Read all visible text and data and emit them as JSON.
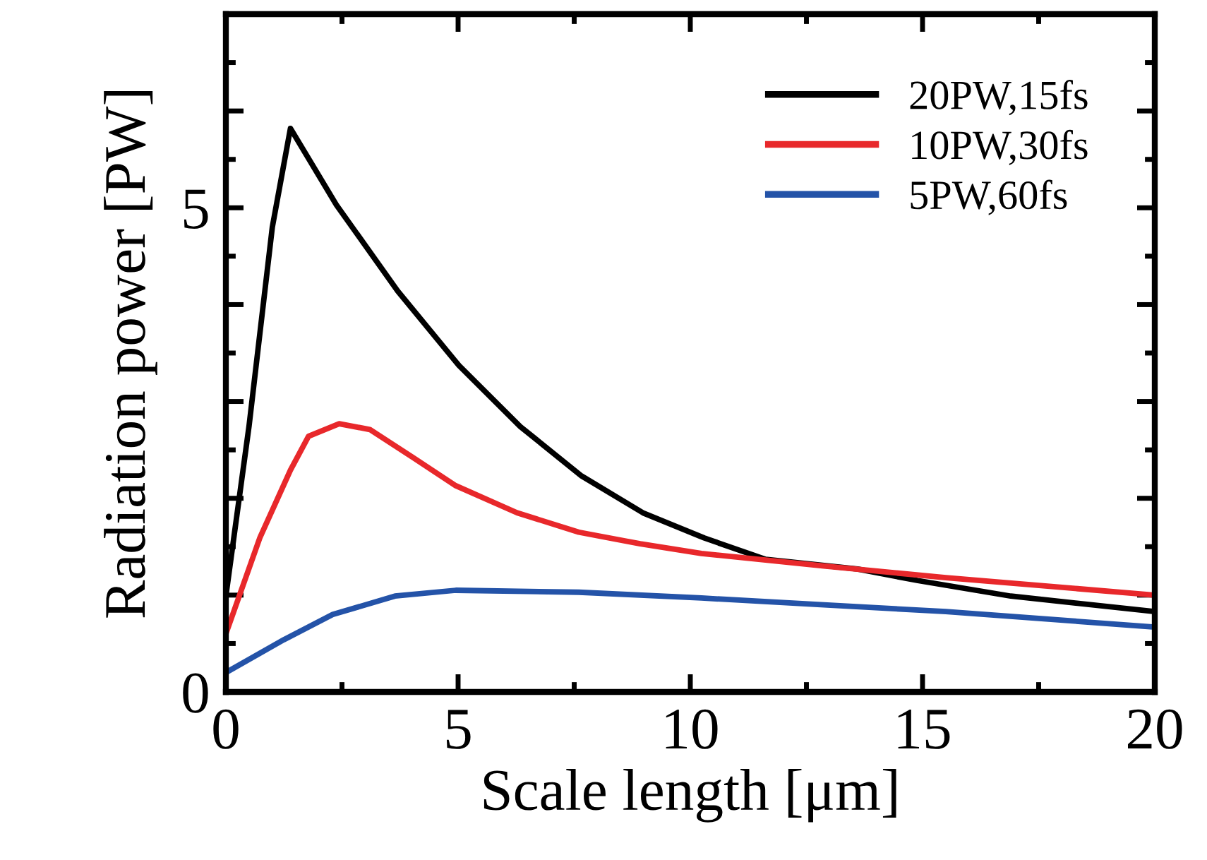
{
  "chart_data": {
    "type": "line",
    "xlabel": "Scale length [μm]",
    "ylabel": "Radiation power [PW]",
    "xlim": [
      0,
      20
    ],
    "xticks": [
      0,
      5,
      10,
      15,
      20
    ],
    "ylim": [
      0,
      7
    ],
    "yticks": [
      0,
      {
        "value": 1,
        "label": null
      },
      {
        "value": 2,
        "label": null
      },
      {
        "value": 3,
        "label": null
      },
      {
        "value": 4,
        "label": null
      },
      5,
      {
        "value": 6,
        "label": null
      }
    ],
    "grid": false,
    "legend": "top right",
    "marker": "none",
    "line_style": "solid",
    "series": [
      {
        "name": "20PW,15fs",
        "color": "#000000",
        "x": [
          0,
          0.5,
          1.0,
          1.39,
          2.38,
          3.7,
          5.02,
          6.34,
          7.66,
          8.98,
          10.3,
          11.62,
          13.6,
          14.9,
          16.9,
          20
        ],
        "values": [
          0.99,
          2.75,
          4.8,
          5.82,
          5.03,
          4.14,
          3.37,
          2.74,
          2.23,
          1.85,
          1.59,
          1.37,
          1.27,
          1.15,
          0.99,
          0.83
        ]
      },
      {
        "name": "10PW,30fs",
        "color": "#e8282b",
        "x": [
          0,
          0.73,
          1.39,
          1.78,
          2.44,
          3.1,
          4.03,
          4.95,
          6.27,
          7.6,
          8.92,
          10.24,
          12.88,
          15.5,
          20
        ],
        "values": [
          0.6,
          1.59,
          2.29,
          2.64,
          2.77,
          2.71,
          2.42,
          2.13,
          1.85,
          1.65,
          1.53,
          1.43,
          1.3,
          1.18,
          1.0
        ]
      },
      {
        "name": "5PW,60fs",
        "color": "#2453a8",
        "x": [
          0,
          1.25,
          2.3,
          3.64,
          4.95,
          7.6,
          10.24,
          12.88,
          15.5,
          20
        ],
        "values": [
          0.2,
          0.54,
          0.8,
          0.99,
          1.05,
          1.03,
          0.97,
          0.9,
          0.83,
          0.67
        ]
      }
    ]
  }
}
